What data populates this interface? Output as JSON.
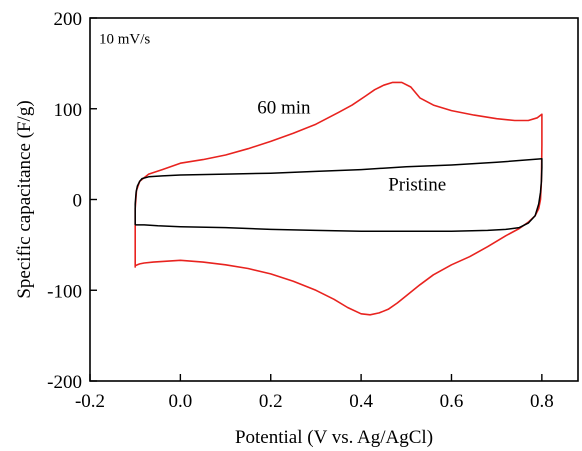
{
  "chart_data": {
    "type": "line",
    "title": "",
    "xlabel": "Potential (V vs. Ag/AgCl)",
    "ylabel": "Specific capacitance (F/g)",
    "xlim": [
      -0.2,
      0.88
    ],
    "ylim": [
      -200,
      200
    ],
    "x_ticks": [
      -0.2,
      0.0,
      0.2,
      0.4,
      0.6,
      0.8
    ],
    "x_tick_labels": [
      "-0.2",
      "0.0",
      "0.2",
      "0.4",
      "0.6",
      "0.8"
    ],
    "y_ticks": [
      -200,
      -100,
      0,
      100,
      200
    ],
    "y_tick_labels": [
      "-200",
      "-100",
      "0",
      "100",
      "200"
    ],
    "grid": false,
    "legend": "none",
    "annotations": [
      {
        "id": "scan-rate",
        "text": "10 mV/s",
        "x": -0.18,
        "y": 172
      },
      {
        "id": "label-60min",
        "text": "60 min",
        "x": 0.17,
        "y": 95
      },
      {
        "id": "label-pristine",
        "text": "Pristine",
        "x": 0.46,
        "y": 10
      }
    ],
    "series": [
      {
        "name": "60 min",
        "color": "#e8231f",
        "x": [
          -0.1,
          -0.1,
          -0.097,
          -0.09,
          -0.07,
          -0.04,
          0.0,
          0.05,
          0.1,
          0.15,
          0.2,
          0.25,
          0.3,
          0.35,
          0.38,
          0.41,
          0.43,
          0.45,
          0.47,
          0.49,
          0.51,
          0.53,
          0.56,
          0.6,
          0.65,
          0.7,
          0.74,
          0.77,
          0.79,
          0.8,
          0.8,
          0.799,
          0.797,
          0.793,
          0.785,
          0.77,
          0.75,
          0.72,
          0.68,
          0.64,
          0.6,
          0.56,
          0.53,
          0.5,
          0.48,
          0.46,
          0.44,
          0.42,
          0.4,
          0.37,
          0.34,
          0.3,
          0.25,
          0.2,
          0.15,
          0.1,
          0.05,
          0.0,
          -0.03,
          -0.06,
          -0.08,
          -0.09,
          -0.095,
          -0.1,
          -0.1
        ],
        "values": [
          -75,
          -10,
          10,
          20,
          28,
          33,
          40,
          44,
          49,
          56,
          64,
          73,
          83,
          96,
          104,
          114,
          121,
          126,
          129,
          129,
          124,
          112,
          104,
          98,
          93,
          89,
          87,
          87,
          90,
          94,
          60,
          20,
          0,
          -10,
          -18,
          -25,
          -32,
          -40,
          -52,
          -63,
          -72,
          -83,
          -94,
          -106,
          -114,
          -121,
          -125,
          -127,
          -126,
          -119,
          -110,
          -100,
          -90,
          -82,
          -76,
          -72,
          -69,
          -67,
          -68,
          -69,
          -70,
          -71,
          -72,
          -73,
          -75
        ]
      },
      {
        "name": "Pristine",
        "color": "#000000",
        "x": [
          -0.1,
          -0.1,
          -0.098,
          -0.095,
          -0.09,
          -0.085,
          -0.07,
          -0.04,
          0.0,
          0.1,
          0.2,
          0.3,
          0.4,
          0.5,
          0.6,
          0.7,
          0.8,
          0.8,
          0.799,
          0.797,
          0.793,
          0.785,
          0.77,
          0.75,
          0.72,
          0.68,
          0.6,
          0.5,
          0.4,
          0.3,
          0.2,
          0.1,
          0.0,
          -0.05,
          -0.08,
          -0.1
        ],
        "values": [
          -28,
          -5,
          8,
          15,
          20,
          23,
          25,
          26,
          27,
          28,
          29,
          31,
          33,
          36,
          38,
          41,
          45,
          35,
          20,
          8,
          -5,
          -18,
          -26,
          -31,
          -33,
          -34,
          -35,
          -35,
          -35,
          -34,
          -33,
          -31,
          -30,
          -29,
          -28,
          -28
        ]
      }
    ]
  }
}
